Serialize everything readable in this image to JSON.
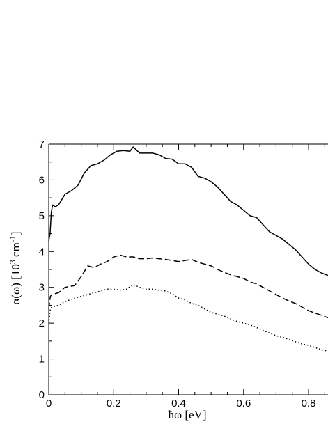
{
  "chart_data": {
    "type": "line",
    "title": "",
    "xlabel": "ħω [eV]",
    "ylabel_parts": {
      "base": "α(ω) [10",
      "exp1": "3",
      "mid": " cm",
      "exp2": "-1",
      "end": "]"
    },
    "xlim": [
      0,
      0.86
    ],
    "ylim": [
      0,
      7
    ],
    "x_ticks": [
      0,
      0.2,
      0.4,
      0.6,
      0.8
    ],
    "x_tick_labels": [
      "0",
      "0.2",
      "0.4",
      "0.6",
      "0.8"
    ],
    "y_ticks": [
      0,
      1,
      2,
      3,
      4,
      5,
      6,
      7
    ],
    "y_tick_labels": [
      "0",
      "1",
      "2",
      "3",
      "4",
      "5",
      "6",
      "7"
    ],
    "grid": false,
    "legend": "none",
    "series": [
      {
        "style": "solid",
        "color": "#000000",
        "points": [
          [
            0.0,
            4.3
          ],
          [
            0.004,
            4.5
          ],
          [
            0.008,
            5.1
          ],
          [
            0.012,
            5.3
          ],
          [
            0.02,
            5.25
          ],
          [
            0.03,
            5.3
          ],
          [
            0.04,
            5.45
          ],
          [
            0.05,
            5.6
          ],
          [
            0.07,
            5.7
          ],
          [
            0.09,
            5.85
          ],
          [
            0.11,
            6.2
          ],
          [
            0.13,
            6.4
          ],
          [
            0.15,
            6.45
          ],
          [
            0.17,
            6.55
          ],
          [
            0.19,
            6.7
          ],
          [
            0.21,
            6.8
          ],
          [
            0.23,
            6.82
          ],
          [
            0.25,
            6.8
          ],
          [
            0.26,
            6.92
          ],
          [
            0.28,
            6.75
          ],
          [
            0.3,
            6.75
          ],
          [
            0.32,
            6.75
          ],
          [
            0.34,
            6.7
          ],
          [
            0.36,
            6.6
          ],
          [
            0.38,
            6.58
          ],
          [
            0.4,
            6.45
          ],
          [
            0.42,
            6.45
          ],
          [
            0.44,
            6.35
          ],
          [
            0.46,
            6.1
          ],
          [
            0.48,
            6.05
          ],
          [
            0.5,
            5.95
          ],
          [
            0.52,
            5.8
          ],
          [
            0.54,
            5.6
          ],
          [
            0.56,
            5.4
          ],
          [
            0.58,
            5.3
          ],
          [
            0.6,
            5.15
          ],
          [
            0.62,
            5.0
          ],
          [
            0.64,
            4.95
          ],
          [
            0.66,
            4.75
          ],
          [
            0.68,
            4.55
          ],
          [
            0.7,
            4.45
          ],
          [
            0.72,
            4.35
          ],
          [
            0.74,
            4.2
          ],
          [
            0.76,
            4.05
          ],
          [
            0.78,
            3.85
          ],
          [
            0.8,
            3.65
          ],
          [
            0.82,
            3.5
          ],
          [
            0.84,
            3.4
          ],
          [
            0.86,
            3.33
          ]
        ]
      },
      {
        "style": "dashed",
        "color": "#000000",
        "points": [
          [
            0.0,
            2.4
          ],
          [
            0.005,
            2.75
          ],
          [
            0.01,
            2.8
          ],
          [
            0.03,
            2.85
          ],
          [
            0.05,
            3.0
          ],
          [
            0.08,
            3.05
          ],
          [
            0.1,
            3.3
          ],
          [
            0.12,
            3.6
          ],
          [
            0.14,
            3.55
          ],
          [
            0.16,
            3.65
          ],
          [
            0.18,
            3.72
          ],
          [
            0.2,
            3.85
          ],
          [
            0.22,
            3.9
          ],
          [
            0.24,
            3.85
          ],
          [
            0.26,
            3.85
          ],
          [
            0.28,
            3.8
          ],
          [
            0.3,
            3.8
          ],
          [
            0.32,
            3.82
          ],
          [
            0.34,
            3.8
          ],
          [
            0.36,
            3.78
          ],
          [
            0.38,
            3.75
          ],
          [
            0.4,
            3.72
          ],
          [
            0.42,
            3.75
          ],
          [
            0.44,
            3.78
          ],
          [
            0.46,
            3.7
          ],
          [
            0.48,
            3.65
          ],
          [
            0.5,
            3.6
          ],
          [
            0.52,
            3.5
          ],
          [
            0.54,
            3.42
          ],
          [
            0.56,
            3.35
          ],
          [
            0.58,
            3.3
          ],
          [
            0.6,
            3.25
          ],
          [
            0.62,
            3.15
          ],
          [
            0.64,
            3.1
          ],
          [
            0.66,
            3.0
          ],
          [
            0.68,
            2.9
          ],
          [
            0.7,
            2.8
          ],
          [
            0.72,
            2.7
          ],
          [
            0.74,
            2.62
          ],
          [
            0.76,
            2.55
          ],
          [
            0.78,
            2.45
          ],
          [
            0.8,
            2.35
          ],
          [
            0.82,
            2.28
          ],
          [
            0.84,
            2.22
          ],
          [
            0.86,
            2.15
          ]
        ]
      },
      {
        "style": "dotted",
        "color": "#000000",
        "points": [
          [
            0.0,
            2.0
          ],
          [
            0.005,
            2.4
          ],
          [
            0.01,
            2.45
          ],
          [
            0.03,
            2.5
          ],
          [
            0.05,
            2.6
          ],
          [
            0.08,
            2.7
          ],
          [
            0.1,
            2.75
          ],
          [
            0.12,
            2.8
          ],
          [
            0.14,
            2.85
          ],
          [
            0.16,
            2.9
          ],
          [
            0.18,
            2.95
          ],
          [
            0.2,
            2.95
          ],
          [
            0.22,
            2.92
          ],
          [
            0.24,
            2.95
          ],
          [
            0.26,
            3.08
          ],
          [
            0.28,
            3.0
          ],
          [
            0.3,
            2.95
          ],
          [
            0.32,
            2.95
          ],
          [
            0.34,
            2.92
          ],
          [
            0.36,
            2.9
          ],
          [
            0.38,
            2.82
          ],
          [
            0.4,
            2.7
          ],
          [
            0.42,
            2.65
          ],
          [
            0.44,
            2.55
          ],
          [
            0.46,
            2.5
          ],
          [
            0.48,
            2.4
          ],
          [
            0.5,
            2.3
          ],
          [
            0.52,
            2.25
          ],
          [
            0.54,
            2.2
          ],
          [
            0.56,
            2.12
          ],
          [
            0.58,
            2.05
          ],
          [
            0.6,
            2.0
          ],
          [
            0.62,
            1.95
          ],
          [
            0.64,
            1.88
          ],
          [
            0.66,
            1.8
          ],
          [
            0.68,
            1.72
          ],
          [
            0.7,
            1.65
          ],
          [
            0.72,
            1.6
          ],
          [
            0.74,
            1.55
          ],
          [
            0.76,
            1.48
          ],
          [
            0.78,
            1.42
          ],
          [
            0.8,
            1.38
          ],
          [
            0.82,
            1.32
          ],
          [
            0.84,
            1.26
          ],
          [
            0.86,
            1.22
          ]
        ]
      }
    ]
  }
}
